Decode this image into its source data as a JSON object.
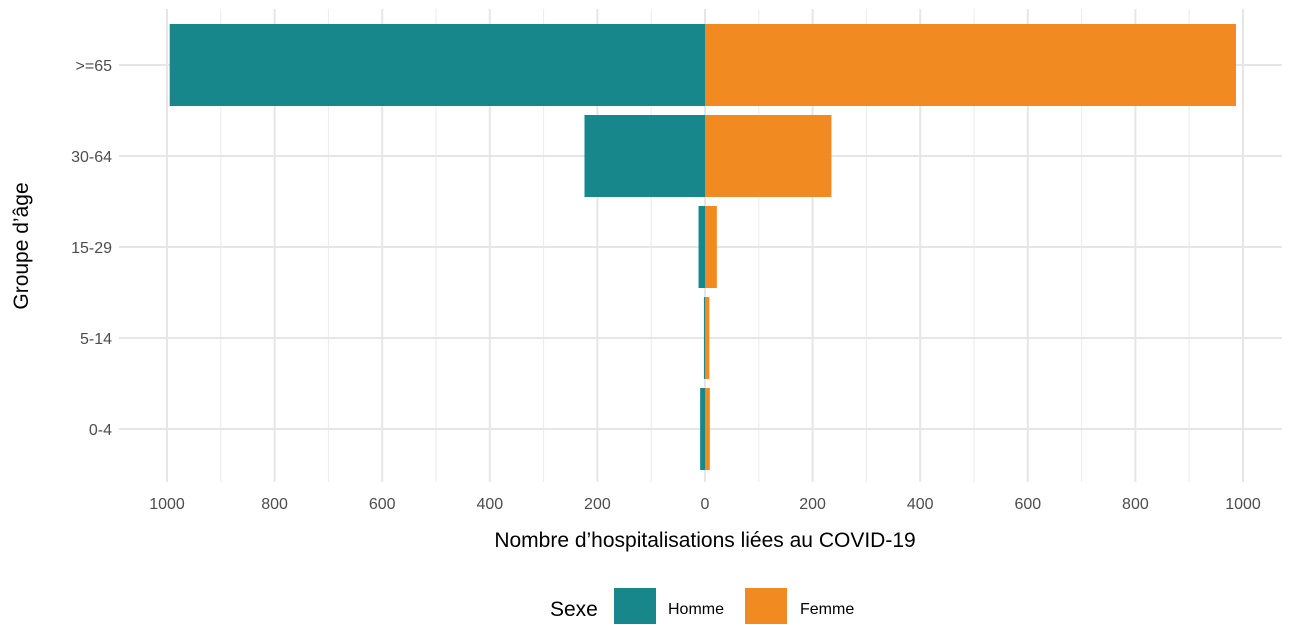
{
  "chart_data": {
    "type": "bar",
    "orientation": "horizontal",
    "layout": "population-pyramid",
    "categories": [
      "0-4",
      "5-14",
      "15-29",
      "30-64",
      ">=65"
    ],
    "series": [
      {
        "name": "Homme",
        "values": [
          9,
          2,
          12,
          224,
          995
        ],
        "color": "#17878C",
        "direction": "left"
      },
      {
        "name": "Femme",
        "values": [
          9,
          8,
          22,
          235,
          987
        ],
        "color": "#F28A22",
        "direction": "right"
      }
    ],
    "x_ticks": [
      -1000,
      -800,
      -600,
      -400,
      -200,
      0,
      200,
      400,
      600,
      800,
      1000
    ],
    "x_tick_labels": [
      "1000",
      "800",
      "600",
      "400",
      "200",
      "0",
      "200",
      "400",
      "600",
      "800",
      "1000"
    ],
    "xlim": [
      -1000,
      1000
    ],
    "xlabel": "Nombre d’hospitalisations liées au COVID-19",
    "ylabel": "Groupe d’âge",
    "legend": {
      "title": "Sexe",
      "position": "bottom"
    },
    "grid": true
  }
}
